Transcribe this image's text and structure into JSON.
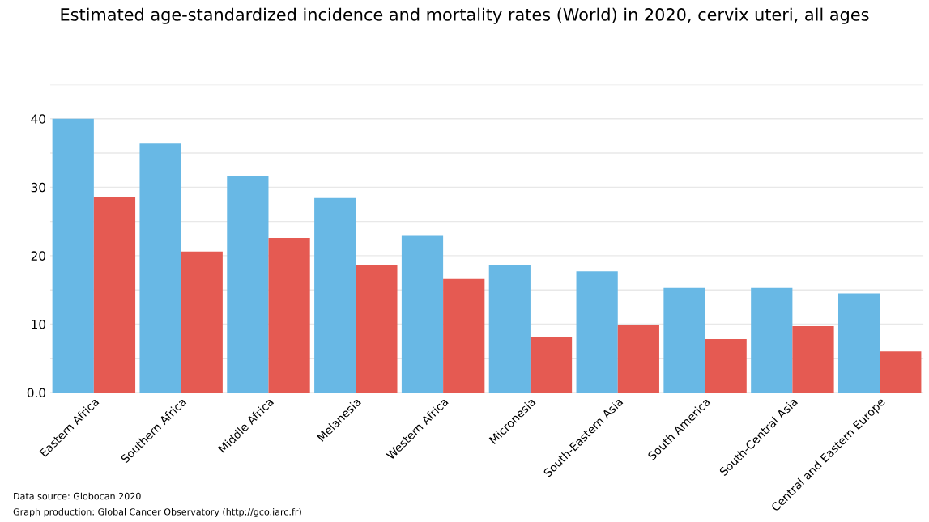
{
  "chart_data": {
    "type": "bar",
    "title": "Estimated age-standardized incidence and mortality rates (World) in 2020, cervix uteri, all ages",
    "categories": [
      "Eastern Africa",
      "Southern Africa",
      "Middle Africa",
      "Melanesia",
      "Western Africa",
      "Micronesia",
      "South-Eastern Asia",
      "South America",
      "South-Central Asia",
      "Central and Eastern Europe"
    ],
    "series": [
      {
        "color": "#68b8e5",
        "values": [
          40.0,
          36.4,
          31.6,
          28.4,
          23.0,
          18.7,
          17.7,
          15.3,
          15.3,
          14.5
        ]
      },
      {
        "color": "#e55a52",
        "values": [
          28.5,
          20.6,
          22.6,
          18.6,
          16.6,
          8.1,
          9.9,
          7.8,
          9.7,
          6.0
        ]
      }
    ],
    "ylim": [
      0,
      45
    ],
    "yticks": [
      {
        "value": 0,
        "label": "0.0"
      },
      {
        "value": 5,
        "label": null
      },
      10,
      {
        "value": 15,
        "label": null
      },
      20,
      {
        "value": 25,
        "label": null
      },
      30,
      {
        "value": 35,
        "label": null
      },
      40,
      {
        "value": 45,
        "label": null
      }
    ],
    "grid": "y",
    "annotations": [
      "Data source: Globocan 2020",
      "Graph production: Global Cancer Observatory (http://gco.iarc.fr)"
    ]
  }
}
